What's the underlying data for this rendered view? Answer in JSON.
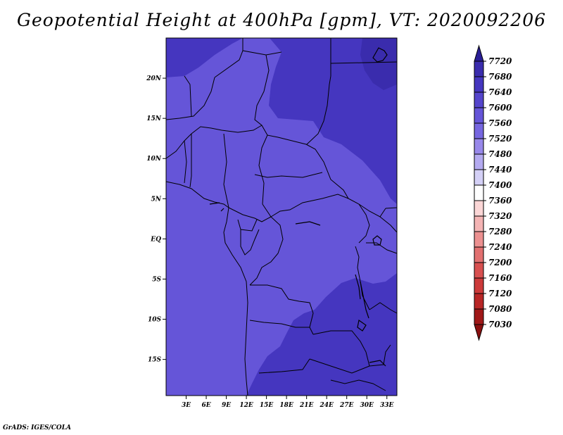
{
  "title": "Geopotential Height at 400hPa [gpm], VT: 2020092206",
  "credit": "GrADS: IGES/COLA",
  "map": {
    "lon_range": [
      0,
      34.5
    ],
    "lat_range": [
      -19.5,
      25
    ],
    "lat_ticks": [
      {
        "value": 20,
        "label": "20N"
      },
      {
        "value": 15,
        "label": "15N"
      },
      {
        "value": 10,
        "label": "10N"
      },
      {
        "value": 5,
        "label": "5N"
      },
      {
        "value": 0,
        "label": "EQ"
      },
      {
        "value": -5,
        "label": "5S"
      },
      {
        "value": -10,
        "label": "10S"
      },
      {
        "value": -15,
        "label": "15S"
      }
    ],
    "lon_ticks": [
      {
        "value": 3,
        "label": "3E"
      },
      {
        "value": 6,
        "label": "6E"
      },
      {
        "value": 9,
        "label": "9E"
      },
      {
        "value": 12,
        "label": "12E"
      },
      {
        "value": 15,
        "label": "15E"
      },
      {
        "value": 18,
        "label": "18E"
      },
      {
        "value": 21,
        "label": "21E"
      },
      {
        "value": 24,
        "label": "24E"
      },
      {
        "value": 27,
        "label": "27E"
      },
      {
        "value": 30,
        "label": "30E"
      },
      {
        "value": 33,
        "label": "33E"
      }
    ]
  },
  "colorbar": {
    "levels": [
      "7720",
      "7680",
      "7640",
      "7600",
      "7560",
      "7520",
      "7480",
      "7440",
      "7400",
      "7360",
      "7320",
      "7280",
      "7240",
      "7200",
      "7160",
      "7120",
      "7080",
      "7030"
    ],
    "colors": [
      "#2a1e96",
      "#3a2cad",
      "#4536bf",
      "#5545cc",
      "#6555d8",
      "#7666e0",
      "#9888ea",
      "#b4aaf0",
      "#d4d0f6",
      "#ffffff",
      "#fbd6d6",
      "#f4b4b4",
      "#ec9090",
      "#e27070",
      "#d85050",
      "#cc3a3a",
      "#b82626",
      "#a01818",
      "#8a0f0f"
    ]
  },
  "fill_colors": {
    "base": "#6555d8",
    "high": "#4536bf",
    "higher": "#3a2cad"
  }
}
